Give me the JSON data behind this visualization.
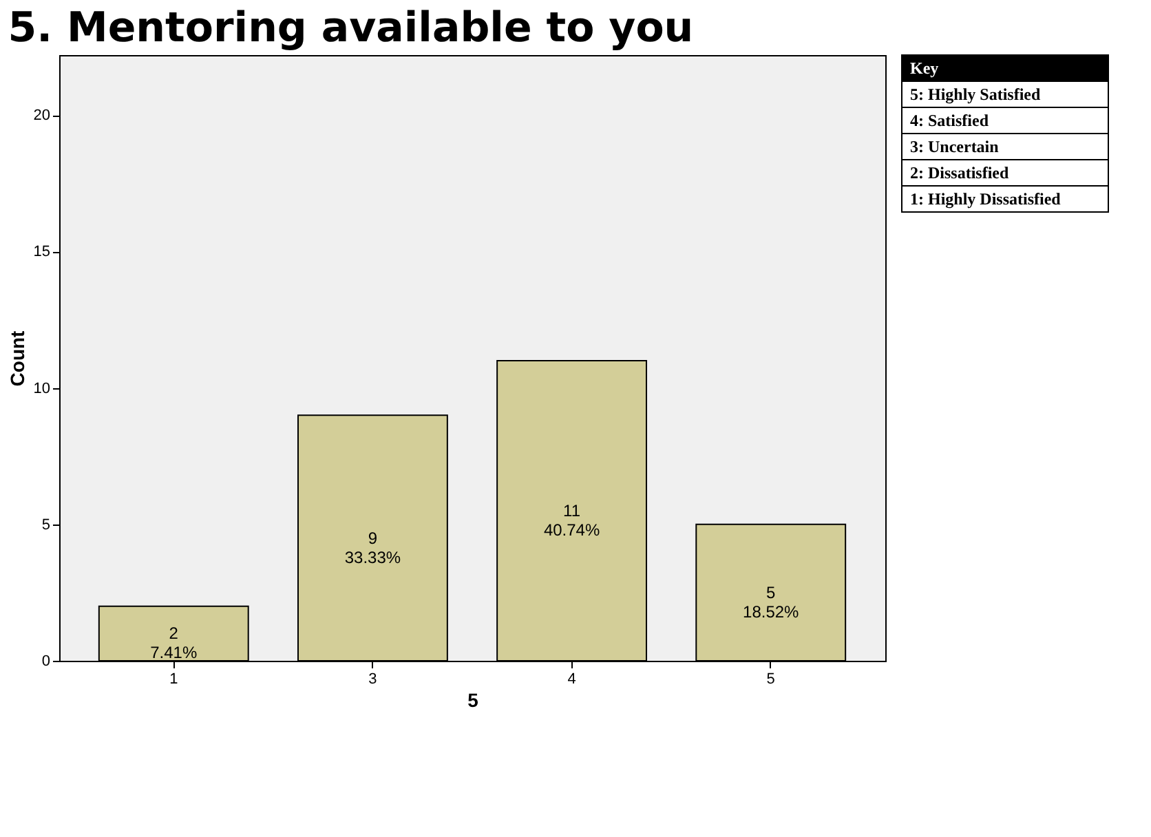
{
  "chart_data": {
    "type": "bar",
    "title": "5. Mentoring available to you",
    "xlabel": "5",
    "ylabel": "Count",
    "categories": [
      "1",
      "3",
      "4",
      "5"
    ],
    "values": [
      2,
      9,
      11,
      5
    ],
    "color": "#d3ce98",
    "value_labels": [
      "2\n7.41%",
      "9\n33.33%",
      "11\n40.74%",
      "5\n18.52%"
    ],
    "ylim": [
      0,
      22.2
    ],
    "yticks": [
      0,
      5,
      10,
      15,
      20
    ],
    "grid": false,
    "annotations": [
      "Key",
      "5: Highly Satisfied",
      "4: Satisfied",
      "3: Uncertain",
      "2: Dissatisfied",
      "1: Highly Dissatisfied"
    ]
  }
}
